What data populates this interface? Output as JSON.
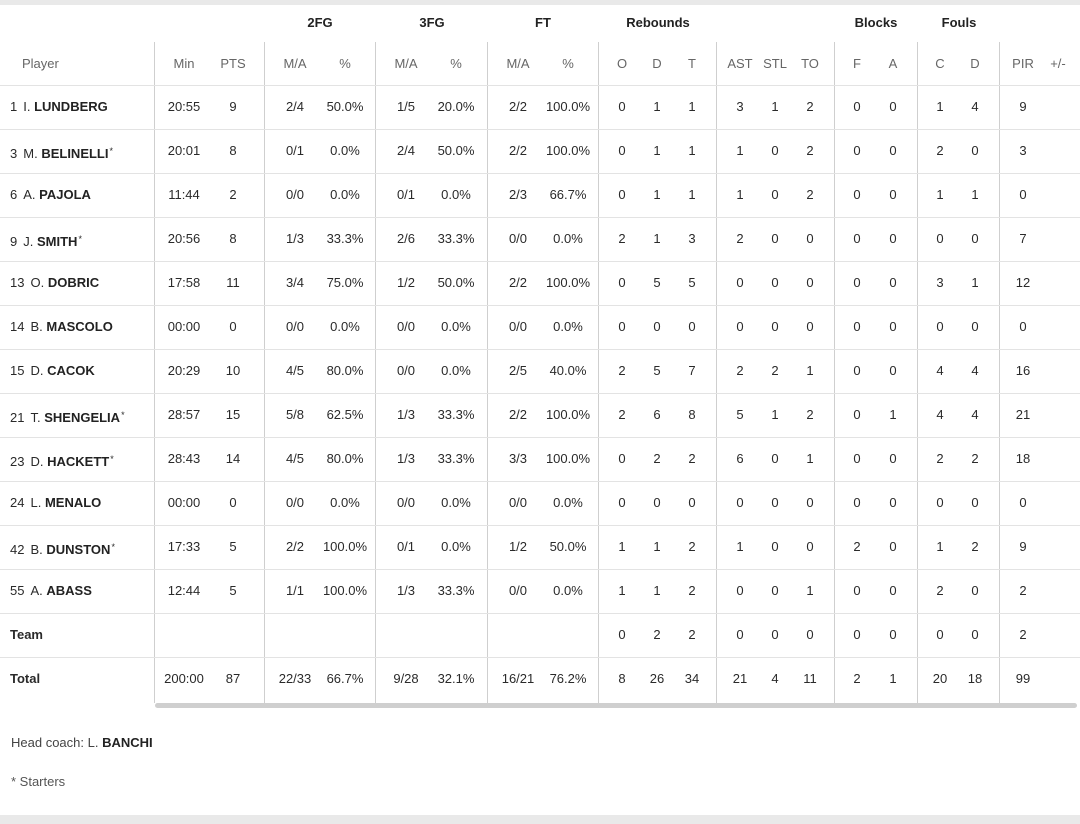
{
  "group_headers": {
    "fg2": "2FG",
    "fg3": "3FG",
    "ft": "FT",
    "rebounds": "Rebounds",
    "blocks": "Blocks",
    "fouls": "Fouls"
  },
  "columns": {
    "player": "Player",
    "min": "Min",
    "pts": "PTS",
    "fg2_ma": "M/A",
    "fg2_pct": "%",
    "fg3_ma": "M/A",
    "fg3_pct": "%",
    "ft_ma": "M/A",
    "ft_pct": "%",
    "reb_o": "O",
    "reb_d": "D",
    "reb_t": "T",
    "ast": "AST",
    "stl": "STL",
    "to": "TO",
    "blk_f": "F",
    "blk_a": "A",
    "foul_c": "C",
    "foul_d": "D",
    "pir": "PIR",
    "pm": "+/-"
  },
  "players": [
    {
      "num": "1",
      "initial": "I.",
      "name": "LUNDBERG",
      "starter": false,
      "min": "20:55",
      "pts": "9",
      "fg2_ma": "2/4",
      "fg2_pct": "50.0%",
      "fg3_ma": "1/5",
      "fg3_pct": "20.0%",
      "ft_ma": "2/2",
      "ft_pct": "100.0%",
      "reb_o": "0",
      "reb_d": "1",
      "reb_t": "1",
      "ast": "3",
      "stl": "1",
      "to": "2",
      "blk_f": "0",
      "blk_a": "0",
      "foul_c": "1",
      "foul_d": "4",
      "pir": "9"
    },
    {
      "num": "3",
      "initial": "M.",
      "name": "BELINELLI",
      "starter": true,
      "min": "20:01",
      "pts": "8",
      "fg2_ma": "0/1",
      "fg2_pct": "0.0%",
      "fg3_ma": "2/4",
      "fg3_pct": "50.0%",
      "ft_ma": "2/2",
      "ft_pct": "100.0%",
      "reb_o": "0",
      "reb_d": "1",
      "reb_t": "1",
      "ast": "1",
      "stl": "0",
      "to": "2",
      "blk_f": "0",
      "blk_a": "0",
      "foul_c": "2",
      "foul_d": "0",
      "pir": "3"
    },
    {
      "num": "6",
      "initial": "A.",
      "name": "PAJOLA",
      "starter": false,
      "min": "11:44",
      "pts": "2",
      "fg2_ma": "0/0",
      "fg2_pct": "0.0%",
      "fg3_ma": "0/1",
      "fg3_pct": "0.0%",
      "ft_ma": "2/3",
      "ft_pct": "66.7%",
      "reb_o": "0",
      "reb_d": "1",
      "reb_t": "1",
      "ast": "1",
      "stl": "0",
      "to": "2",
      "blk_f": "0",
      "blk_a": "0",
      "foul_c": "1",
      "foul_d": "1",
      "pir": "0"
    },
    {
      "num": "9",
      "initial": "J.",
      "name": "SMITH",
      "starter": true,
      "min": "20:56",
      "pts": "8",
      "fg2_ma": "1/3",
      "fg2_pct": "33.3%",
      "fg3_ma": "2/6",
      "fg3_pct": "33.3%",
      "ft_ma": "0/0",
      "ft_pct": "0.0%",
      "reb_o": "2",
      "reb_d": "1",
      "reb_t": "3",
      "ast": "2",
      "stl": "0",
      "to": "0",
      "blk_f": "0",
      "blk_a": "0",
      "foul_c": "0",
      "foul_d": "0",
      "pir": "7"
    },
    {
      "num": "13",
      "initial": "O.",
      "name": "DOBRIC",
      "starter": false,
      "min": "17:58",
      "pts": "11",
      "fg2_ma": "3/4",
      "fg2_pct": "75.0%",
      "fg3_ma": "1/2",
      "fg3_pct": "50.0%",
      "ft_ma": "2/2",
      "ft_pct": "100.0%",
      "reb_o": "0",
      "reb_d": "5",
      "reb_t": "5",
      "ast": "0",
      "stl": "0",
      "to": "0",
      "blk_f": "0",
      "blk_a": "0",
      "foul_c": "3",
      "foul_d": "1",
      "pir": "12"
    },
    {
      "num": "14",
      "initial": "B.",
      "name": "MASCOLO",
      "starter": false,
      "min": "00:00",
      "pts": "0",
      "fg2_ma": "0/0",
      "fg2_pct": "0.0%",
      "fg3_ma": "0/0",
      "fg3_pct": "0.0%",
      "ft_ma": "0/0",
      "ft_pct": "0.0%",
      "reb_o": "0",
      "reb_d": "0",
      "reb_t": "0",
      "ast": "0",
      "stl": "0",
      "to": "0",
      "blk_f": "0",
      "blk_a": "0",
      "foul_c": "0",
      "foul_d": "0",
      "pir": "0"
    },
    {
      "num": "15",
      "initial": "D.",
      "name": "CACOK",
      "starter": false,
      "min": "20:29",
      "pts": "10",
      "fg2_ma": "4/5",
      "fg2_pct": "80.0%",
      "fg3_ma": "0/0",
      "fg3_pct": "0.0%",
      "ft_ma": "2/5",
      "ft_pct": "40.0%",
      "reb_o": "2",
      "reb_d": "5",
      "reb_t": "7",
      "ast": "2",
      "stl": "2",
      "to": "1",
      "blk_f": "0",
      "blk_a": "0",
      "foul_c": "4",
      "foul_d": "4",
      "pir": "16"
    },
    {
      "num": "21",
      "initial": "T.",
      "name": "SHENGELIA",
      "starter": true,
      "min": "28:57",
      "pts": "15",
      "fg2_ma": "5/8",
      "fg2_pct": "62.5%",
      "fg3_ma": "1/3",
      "fg3_pct": "33.3%",
      "ft_ma": "2/2",
      "ft_pct": "100.0%",
      "reb_o": "2",
      "reb_d": "6",
      "reb_t": "8",
      "ast": "5",
      "stl": "1",
      "to": "2",
      "blk_f": "0",
      "blk_a": "1",
      "foul_c": "4",
      "foul_d": "4",
      "pir": "21"
    },
    {
      "num": "23",
      "initial": "D.",
      "name": "HACKETT",
      "starter": true,
      "min": "28:43",
      "pts": "14",
      "fg2_ma": "4/5",
      "fg2_pct": "80.0%",
      "fg3_ma": "1/3",
      "fg3_pct": "33.3%",
      "ft_ma": "3/3",
      "ft_pct": "100.0%",
      "reb_o": "0",
      "reb_d": "2",
      "reb_t": "2",
      "ast": "6",
      "stl": "0",
      "to": "1",
      "blk_f": "0",
      "blk_a": "0",
      "foul_c": "2",
      "foul_d": "2",
      "pir": "18"
    },
    {
      "num": "24",
      "initial": "L.",
      "name": "MENALO",
      "starter": false,
      "min": "00:00",
      "pts": "0",
      "fg2_ma": "0/0",
      "fg2_pct": "0.0%",
      "fg3_ma": "0/0",
      "fg3_pct": "0.0%",
      "ft_ma": "0/0",
      "ft_pct": "0.0%",
      "reb_o": "0",
      "reb_d": "0",
      "reb_t": "0",
      "ast": "0",
      "stl": "0",
      "to": "0",
      "blk_f": "0",
      "blk_a": "0",
      "foul_c": "0",
      "foul_d": "0",
      "pir": "0"
    },
    {
      "num": "42",
      "initial": "B.",
      "name": "DUNSTON",
      "starter": true,
      "min": "17:33",
      "pts": "5",
      "fg2_ma": "2/2",
      "fg2_pct": "100.0%",
      "fg3_ma": "0/1",
      "fg3_pct": "0.0%",
      "ft_ma": "1/2",
      "ft_pct": "50.0%",
      "reb_o": "1",
      "reb_d": "1",
      "reb_t": "2",
      "ast": "1",
      "stl": "0",
      "to": "0",
      "blk_f": "2",
      "blk_a": "0",
      "foul_c": "1",
      "foul_d": "2",
      "pir": "9"
    },
    {
      "num": "55",
      "initial": "A.",
      "name": "ABASS",
      "starter": false,
      "min": "12:44",
      "pts": "5",
      "fg2_ma": "1/1",
      "fg2_pct": "100.0%",
      "fg3_ma": "1/3",
      "fg3_pct": "33.3%",
      "ft_ma": "0/0",
      "ft_pct": "0.0%",
      "reb_o": "1",
      "reb_d": "1",
      "reb_t": "2",
      "ast": "0",
      "stl": "0",
      "to": "1",
      "blk_f": "0",
      "blk_a": "0",
      "foul_c": "2",
      "foul_d": "0",
      "pir": "2"
    }
  ],
  "team_row": {
    "label": "Team",
    "reb_o": "0",
    "reb_d": "2",
    "reb_t": "2",
    "ast": "0",
    "stl": "0",
    "to": "0",
    "blk_f": "0",
    "blk_a": "0",
    "foul_c": "0",
    "foul_d": "0",
    "pir": "2"
  },
  "total_row": {
    "label": "Total",
    "min": "200:00",
    "pts": "87",
    "fg2_ma": "22/33",
    "fg2_pct": "66.7%",
    "fg3_ma": "9/28",
    "fg3_pct": "32.1%",
    "ft_ma": "16/21",
    "ft_pct": "76.2%",
    "reb_o": "8",
    "reb_d": "26",
    "reb_t": "34",
    "ast": "21",
    "stl": "4",
    "to": "11",
    "blk_f": "2",
    "blk_a": "1",
    "foul_c": "20",
    "foul_d": "18",
    "pir": "99"
  },
  "starter_mark": "*",
  "footer": {
    "coach_label": "Head coach: L.",
    "coach_name": "BANCHI",
    "note": "* Starters"
  }
}
